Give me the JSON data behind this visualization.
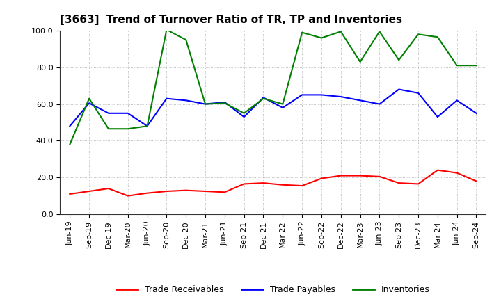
{
  "title": "[3663]  Trend of Turnover Ratio of TR, TP and Inventories",
  "x_labels": [
    "Jun-19",
    "Sep-19",
    "Dec-19",
    "Mar-20",
    "Jun-20",
    "Sep-20",
    "Dec-20",
    "Mar-21",
    "Jun-21",
    "Sep-21",
    "Dec-21",
    "Mar-22",
    "Jun-22",
    "Sep-22",
    "Dec-22",
    "Mar-23",
    "Jun-23",
    "Sep-23",
    "Dec-23",
    "Mar-24",
    "Jun-24",
    "Sep-24"
  ],
  "trade_receivables": [
    11.0,
    12.5,
    14.0,
    10.0,
    11.5,
    12.5,
    13.0,
    12.5,
    12.0,
    16.5,
    17.0,
    16.0,
    15.5,
    19.5,
    21.0,
    21.0,
    20.5,
    17.0,
    16.5,
    24.0,
    22.5,
    18.0
  ],
  "trade_payables": [
    48.0,
    60.5,
    55.0,
    55.0,
    48.0,
    63.0,
    62.0,
    60.0,
    61.0,
    53.0,
    63.5,
    58.0,
    65.0,
    65.0,
    64.0,
    62.0,
    60.0,
    68.0,
    66.0,
    53.0,
    62.0,
    55.0
  ],
  "inventories": [
    38.0,
    63.0,
    46.5,
    46.5,
    48.0,
    100.5,
    95.0,
    60.0,
    60.5,
    55.0,
    63.0,
    60.0,
    99.0,
    96.0,
    99.5,
    83.0,
    99.5,
    84.0,
    98.0,
    96.5,
    81.0,
    81.0
  ],
  "ylim": [
    0.0,
    100.0
  ],
  "yticks": [
    0.0,
    20.0,
    40.0,
    60.0,
    80.0,
    100.0
  ],
  "tr_color": "#ff0000",
  "tp_color": "#0000ff",
  "inv_color": "#008000",
  "bg_color": "#ffffff",
  "grid_color": "#888888",
  "title_fontsize": 11,
  "legend_fontsize": 9,
  "tick_fontsize": 8
}
